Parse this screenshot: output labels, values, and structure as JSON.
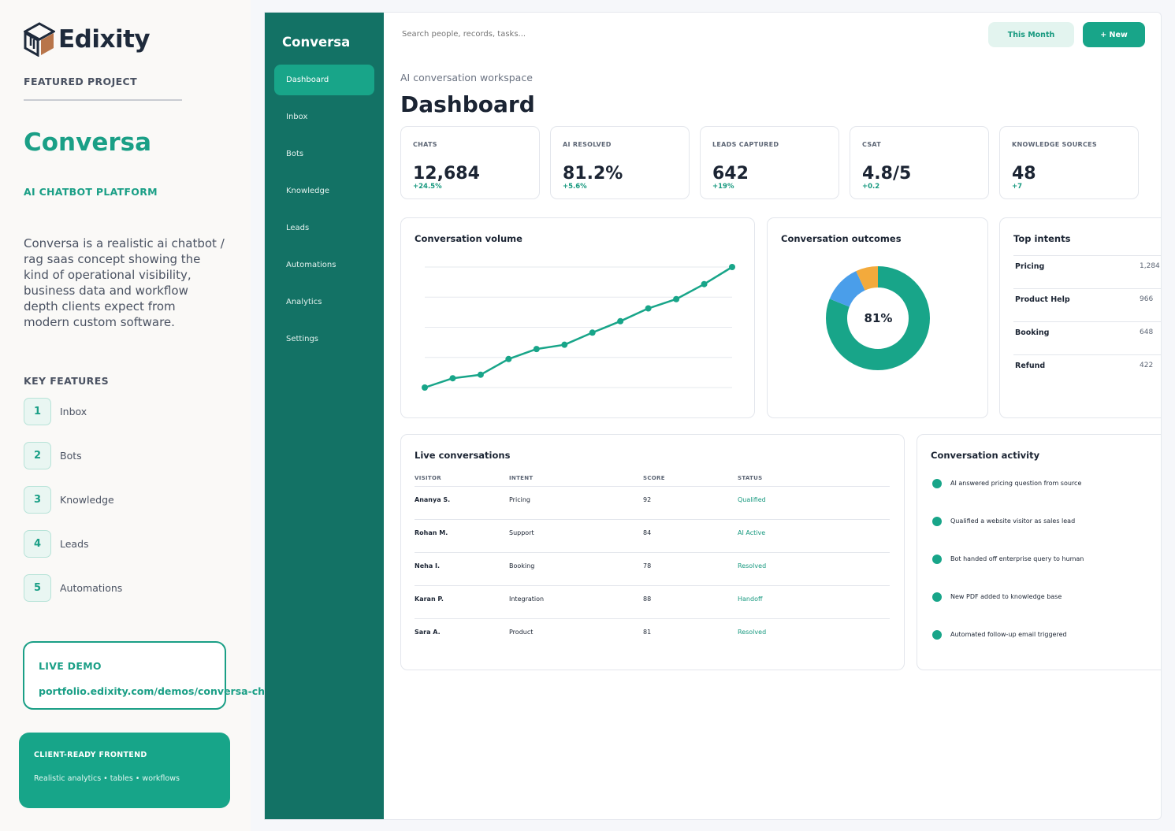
{
  "promo": {
    "logo_text": "Edixity",
    "featured_label": "FEATURED PROJECT",
    "project_name": "Conversa",
    "project_tagline": "AI CHATBOT PLATFORM",
    "description": "Conversa is a realistic ai chatbot / rag saas concept showing the kind of operational visibility, business data and workflow depth clients expect from modern custom software.",
    "key_features_title": "KEY FEATURES",
    "key_features": [
      {
        "num": "1",
        "label": "Inbox"
      },
      {
        "num": "2",
        "label": "Bots"
      },
      {
        "num": "3",
        "label": "Knowledge"
      },
      {
        "num": "4",
        "label": "Leads"
      },
      {
        "num": "5",
        "label": "Automations"
      }
    ],
    "live_demo_title": "LIVE DEMO",
    "live_demo_url": "portfolio.edixity.com/demos/conversa-chatbot",
    "ready_title": "CLIENT-READY FRONTEND",
    "ready_sub": "Realistic analytics • tables • workflows",
    "colors": {
      "accent": "#1a9f86",
      "logo_orange": "#b8754a",
      "logo_dark": "#1e2a3b"
    }
  },
  "app": {
    "brand": "Conversa",
    "nav": [
      {
        "label": "Dashboard",
        "active": true
      },
      {
        "label": "Inbox",
        "active": false
      },
      {
        "label": "Bots",
        "active": false
      },
      {
        "label": "Knowledge",
        "active": false
      },
      {
        "label": "Leads",
        "active": false
      },
      {
        "label": "Automations",
        "active": false
      },
      {
        "label": "Analytics",
        "active": false
      },
      {
        "label": "Settings",
        "active": false
      }
    ],
    "search_placeholder": "Search people, records, tasks...",
    "this_month_label": "This Month",
    "new_label": "+ New",
    "subtitle": "AI conversation workspace",
    "title": "Dashboard",
    "kpis": [
      {
        "label": "CHATS",
        "value": "12,684",
        "delta": "+24.5%"
      },
      {
        "label": "AI RESOLVED",
        "value": "81.2%",
        "delta": "+5.6%"
      },
      {
        "label": "LEADS CAPTURED",
        "value": "642",
        "delta": "+19%"
      },
      {
        "label": "CSAT",
        "value": "4.8/5",
        "delta": "+0.2"
      },
      {
        "label": "KNOWLEDGE SOURCES",
        "value": "48",
        "delta": "+7"
      }
    ],
    "volume_title": "Conversation volume",
    "outcomes_title": "Conversation outcomes",
    "outcomes_center": "81%",
    "intents_title": "Top intents",
    "intents": [
      {
        "name": "Pricing",
        "count": "1,284"
      },
      {
        "name": "Product Help",
        "count": "966"
      },
      {
        "name": "Booking",
        "count": "648"
      },
      {
        "name": "Refund",
        "count": "422"
      }
    ],
    "live_title": "Live conversations",
    "live_columns": [
      "VISITOR",
      "INTENT",
      "SCORE",
      "STATUS"
    ],
    "live_rows": [
      {
        "visitor": "Ananya S.",
        "intent": "Pricing",
        "score": "92",
        "status": "Qualified"
      },
      {
        "visitor": "Rohan M.",
        "intent": "Support",
        "score": "84",
        "status": "AI Active"
      },
      {
        "visitor": "Neha I.",
        "intent": "Booking",
        "score": "78",
        "status": "Resolved"
      },
      {
        "visitor": "Karan P.",
        "intent": "Integration",
        "score": "88",
        "status": "Handoff"
      },
      {
        "visitor": "Sara A.",
        "intent": "Product",
        "score": "81",
        "status": "Resolved"
      }
    ],
    "activity_title": "Conversation activity",
    "activity": [
      "AI answered pricing question from source",
      "Qualified a website visitor as sales lead",
      "Bot handed off enterprise query to human",
      "New PDF added to knowledge base",
      "Automated follow-up email triggered"
    ]
  },
  "chart_data": [
    {
      "type": "line",
      "title": "Conversation volume",
      "x": [
        1,
        2,
        3,
        4,
        5,
        6,
        7,
        8,
        9,
        10,
        11,
        12
      ],
      "series": [
        {
          "values": [
            10,
            23,
            28,
            50,
            64,
            70,
            87,
            103,
            121,
            134,
            155,
            179
          ]
        }
      ],
      "ylim": [
        10,
        179
      ],
      "grid": true,
      "color": "#18a589"
    },
    {
      "type": "pie",
      "title": "Conversation outcomes",
      "center_label": "81%",
      "slices": [
        {
          "value": 81,
          "color": "#18a589"
        },
        {
          "value": 12,
          "color": "#4a9eea"
        },
        {
          "value": 7,
          "color": "#f3aa3c"
        }
      ]
    }
  ]
}
